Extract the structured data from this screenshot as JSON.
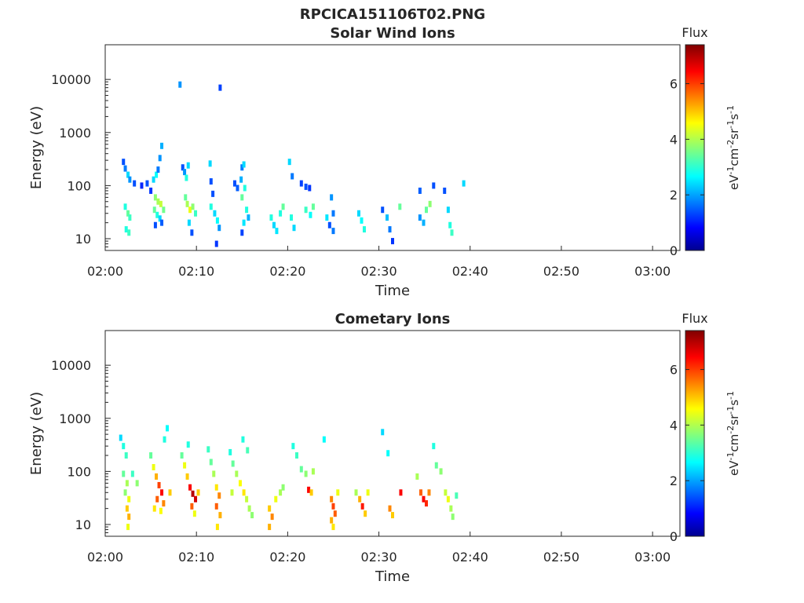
{
  "figure_title": "RPCICA151106T02.PNG",
  "colors": {
    "axis": "#262626",
    "background": "#ffffff",
    "colormap": "jet"
  },
  "chart_data": [
    {
      "type": "heatmap",
      "title": "Solar Wind Ions",
      "xlabel": "Time",
      "ylabel": "Energy (eV)",
      "x_ticks": [
        "02:00",
        "02:10",
        "02:20",
        "02:30",
        "02:40",
        "02:50",
        "03:00"
      ],
      "y_ticks": [
        "10",
        "100",
        "1000",
        "10000"
      ],
      "y_scale": "log",
      "xlim_min": [
        0,
        63
      ],
      "ylim": [
        6,
        45000
      ],
      "colorbar": {
        "title": "Flux",
        "label": "eV-1cm-2sr-1s-1",
        "range": [
          0,
          7.4
        ],
        "ticks": [
          "0",
          "2",
          "4",
          "6"
        ]
      },
      "cells": [
        [
          2.0,
          280,
          1.5
        ],
        [
          2.2,
          210,
          1.8
        ],
        [
          2.5,
          160,
          2.5
        ],
        [
          2.7,
          130,
          2.0
        ],
        [
          2.2,
          40,
          3.0
        ],
        [
          2.5,
          30,
          3.5
        ],
        [
          2.7,
          25,
          3.2
        ],
        [
          2.3,
          15,
          3.0
        ],
        [
          2.6,
          13,
          3.2
        ],
        [
          3.2,
          110,
          1.5
        ],
        [
          4.0,
          100,
          1.2
        ],
        [
          4.6,
          110,
          1.5
        ],
        [
          5.0,
          80,
          1.3
        ],
        [
          5.3,
          130,
          2.5
        ],
        [
          5.6,
          160,
          2.8
        ],
        [
          5.8,
          200,
          1.8
        ],
        [
          6.0,
          330,
          2.0
        ],
        [
          6.2,
          560,
          2.2
        ],
        [
          5.5,
          60,
          3.8
        ],
        [
          5.8,
          50,
          4.0
        ],
        [
          6.1,
          45,
          4.2
        ],
        [
          5.4,
          35,
          3.5
        ],
        [
          5.7,
          28,
          3.0
        ],
        [
          6.0,
          24,
          2.5
        ],
        [
          5.5,
          18,
          1.5
        ],
        [
          6.2,
          20,
          1.6
        ],
        [
          6.4,
          35,
          3.6
        ],
        [
          8.2,
          8000,
          2.0
        ],
        [
          8.5,
          220,
          1.5
        ],
        [
          8.7,
          180,
          2.0
        ],
        [
          8.9,
          140,
          3.0
        ],
        [
          9.1,
          240,
          2.5
        ],
        [
          8.8,
          60,
          3.5
        ],
        [
          9.0,
          45,
          4.0
        ],
        [
          9.3,
          35,
          4.5
        ],
        [
          9.6,
          40,
          3.8
        ],
        [
          9.9,
          30,
          3.2
        ],
        [
          9.2,
          20,
          2.5
        ],
        [
          9.5,
          13,
          1.5
        ],
        [
          11.5,
          260,
          2.5
        ],
        [
          11.6,
          120,
          1.5
        ],
        [
          11.8,
          70,
          1.5
        ],
        [
          11.6,
          40,
          3.0
        ],
        [
          12.0,
          30,
          2.5
        ],
        [
          12.3,
          22,
          2.8
        ],
        [
          12.5,
          16,
          2.0
        ],
        [
          12.2,
          8,
          1.3
        ],
        [
          12.6,
          7000,
          1.4
        ],
        [
          14.2,
          110,
          1.5
        ],
        [
          14.5,
          90,
          1.6
        ],
        [
          14.9,
          130,
          2.2
        ],
        [
          15.0,
          220,
          1.8
        ],
        [
          15.2,
          250,
          2.5
        ],
        [
          15.3,
          90,
          3.0
        ],
        [
          15.0,
          60,
          3.5
        ],
        [
          15.5,
          35,
          3.0
        ],
        [
          15.2,
          20,
          2.6
        ],
        [
          15.0,
          13,
          1.4
        ],
        [
          15.7,
          25,
          2.2
        ],
        [
          18.2,
          25,
          3.0
        ],
        [
          18.5,
          18,
          2.5
        ],
        [
          18.8,
          14,
          2.6
        ],
        [
          19.2,
          30,
          3.0
        ],
        [
          19.5,
          40,
          3.5
        ],
        [
          20.2,
          280,
          2.5
        ],
        [
          20.5,
          150,
          1.8
        ],
        [
          20.4,
          25,
          3.0
        ],
        [
          20.7,
          16,
          2.5
        ],
        [
          21.5,
          110,
          1.4
        ],
        [
          22.0,
          95,
          1.5
        ],
        [
          22.4,
          90,
          1.3
        ],
        [
          22.0,
          35,
          3.2
        ],
        [
          22.5,
          28,
          2.8
        ],
        [
          22.8,
          40,
          3.5
        ],
        [
          24.8,
          60,
          2.0
        ],
        [
          25.0,
          30,
          1.8
        ],
        [
          24.6,
          18,
          1.5
        ],
        [
          25.0,
          14,
          1.8
        ],
        [
          24.3,
          25,
          2.6
        ],
        [
          27.8,
          30,
          2.5
        ],
        [
          28.1,
          22,
          2.8
        ],
        [
          28.4,
          15,
          3.0
        ],
        [
          30.4,
          35,
          1.5
        ],
        [
          30.9,
          25,
          2.3
        ],
        [
          31.2,
          15,
          1.8
        ],
        [
          31.5,
          9,
          1.3
        ],
        [
          32.3,
          40,
          3.5
        ],
        [
          34.5,
          80,
          1.6
        ],
        [
          34.5,
          25,
          2.0
        ],
        [
          34.9,
          20,
          2.2
        ],
        [
          35.2,
          35,
          3.5
        ],
        [
          35.6,
          45,
          3.8
        ],
        [
          36.0,
          100,
          1.5
        ],
        [
          37.2,
          80,
          1.5
        ],
        [
          37.6,
          35,
          2.5
        ],
        [
          37.8,
          18,
          3.0
        ],
        [
          38.0,
          13,
          3.2
        ],
        [
          39.3,
          110,
          2.5
        ]
      ]
    },
    {
      "type": "heatmap",
      "title": "Cometary Ions",
      "xlabel": "Time",
      "ylabel": "Energy (eV)",
      "x_ticks": [
        "02:00",
        "02:10",
        "02:20",
        "02:30",
        "02:40",
        "02:50",
        "03:00"
      ],
      "y_ticks": [
        "10",
        "100",
        "1000",
        "10000"
      ],
      "y_scale": "log",
      "xlim_min": [
        0,
        63
      ],
      "ylim": [
        6,
        45000
      ],
      "colorbar": {
        "title": "Flux",
        "label": "eV-1cm-2sr-1s-1",
        "range": [
          0,
          7.4
        ],
        "ticks": [
          "0",
          "2",
          "4",
          "6"
        ]
      },
      "cells": [
        [
          1.7,
          430,
          2.5
        ],
        [
          2.0,
          300,
          3.0
        ],
        [
          2.3,
          200,
          3.2
        ],
        [
          2.0,
          90,
          3.5
        ],
        [
          2.4,
          60,
          4.0
        ],
        [
          2.2,
          40,
          3.8
        ],
        [
          2.6,
          30,
          4.5
        ],
        [
          2.4,
          20,
          5.0
        ],
        [
          2.6,
          14,
          5.2
        ],
        [
          2.5,
          9,
          4.5
        ],
        [
          3.0,
          90,
          3.2
        ],
        [
          3.5,
          60,
          3.8
        ],
        [
          5.0,
          200,
          3.5
        ],
        [
          5.3,
          120,
          4.5
        ],
        [
          5.6,
          80,
          5.2
        ],
        [
          5.9,
          55,
          6.0
        ],
        [
          6.2,
          40,
          6.5
        ],
        [
          5.7,
          30,
          5.8
        ],
        [
          6.4,
          25,
          5.5
        ],
        [
          5.4,
          20,
          4.8
        ],
        [
          6.1,
          18,
          4.6
        ],
        [
          6.5,
          400,
          3.0
        ],
        [
          6.8,
          650,
          2.8
        ],
        [
          7.1,
          40,
          5.0
        ],
        [
          8.4,
          200,
          3.5
        ],
        [
          8.7,
          130,
          4.5
        ],
        [
          9.0,
          80,
          5.0
        ],
        [
          9.3,
          50,
          6.5
        ],
        [
          9.6,
          38,
          7.0
        ],
        [
          9.9,
          30,
          6.8
        ],
        [
          9.5,
          22,
          5.8
        ],
        [
          9.8,
          16,
          4.5
        ],
        [
          10.2,
          40,
          5.0
        ],
        [
          9.1,
          320,
          3.0
        ],
        [
          11.3,
          260,
          3.2
        ],
        [
          11.6,
          150,
          3.5
        ],
        [
          11.9,
          90,
          4.0
        ],
        [
          12.2,
          50,
          4.8
        ],
        [
          12.5,
          35,
          5.5
        ],
        [
          12.2,
          22,
          5.8
        ],
        [
          12.6,
          15,
          5.2
        ],
        [
          12.3,
          9,
          4.8
        ],
        [
          13.7,
          230,
          3.0
        ],
        [
          14.0,
          140,
          3.5
        ],
        [
          14.4,
          90,
          4.0
        ],
        [
          14.8,
          60,
          4.6
        ],
        [
          15.2,
          40,
          4.8
        ],
        [
          15.5,
          30,
          4.2
        ],
        [
          15.1,
          400,
          3.0
        ],
        [
          15.6,
          250,
          3.3
        ],
        [
          15.8,
          20,
          4.0
        ],
        [
          16.1,
          15,
          3.8
        ],
        [
          13.9,
          40,
          4.2
        ],
        [
          18.0,
          20,
          5.0
        ],
        [
          18.3,
          14,
          5.5
        ],
        [
          18.0,
          9,
          5.2
        ],
        [
          18.7,
          30,
          4.5
        ],
        [
          19.2,
          40,
          4.0
        ],
        [
          19.5,
          50,
          3.8
        ],
        [
          20.6,
          300,
          3.0
        ],
        [
          21.0,
          200,
          3.2
        ],
        [
          21.5,
          110,
          3.5
        ],
        [
          22.0,
          90,
          3.8
        ],
        [
          22.3,
          45,
          6.5
        ],
        [
          22.6,
          40,
          5.0
        ],
        [
          22.8,
          100,
          4.0
        ],
        [
          24.0,
          400,
          2.8
        ],
        [
          24.8,
          30,
          5.5
        ],
        [
          25.0,
          22,
          6.0
        ],
        [
          25.2,
          16,
          5.8
        ],
        [
          24.8,
          12,
          5.2
        ],
        [
          25.0,
          9,
          4.8
        ],
        [
          25.5,
          40,
          4.5
        ],
        [
          27.5,
          40,
          4.0
        ],
        [
          27.9,
          30,
          5.2
        ],
        [
          28.2,
          22,
          6.3
        ],
        [
          28.5,
          16,
          5.0
        ],
        [
          28.8,
          40,
          4.5
        ],
        [
          30.4,
          550,
          2.5
        ],
        [
          31.0,
          220,
          2.8
        ],
        [
          31.2,
          20,
          5.5
        ],
        [
          31.5,
          15,
          5.0
        ],
        [
          32.4,
          40,
          6.5
        ],
        [
          34.2,
          80,
          4.0
        ],
        [
          34.6,
          40,
          5.8
        ],
        [
          34.9,
          30,
          6.5
        ],
        [
          35.2,
          25,
          6.2
        ],
        [
          35.5,
          40,
          5.5
        ],
        [
          36.0,
          300,
          3.0
        ],
        [
          36.3,
          130,
          3.5
        ],
        [
          36.8,
          100,
          3.8
        ],
        [
          37.3,
          40,
          4.2
        ],
        [
          37.6,
          30,
          4.5
        ],
        [
          37.9,
          20,
          4.0
        ],
        [
          38.1,
          14,
          3.8
        ],
        [
          38.5,
          35,
          3.3
        ]
      ]
    }
  ]
}
